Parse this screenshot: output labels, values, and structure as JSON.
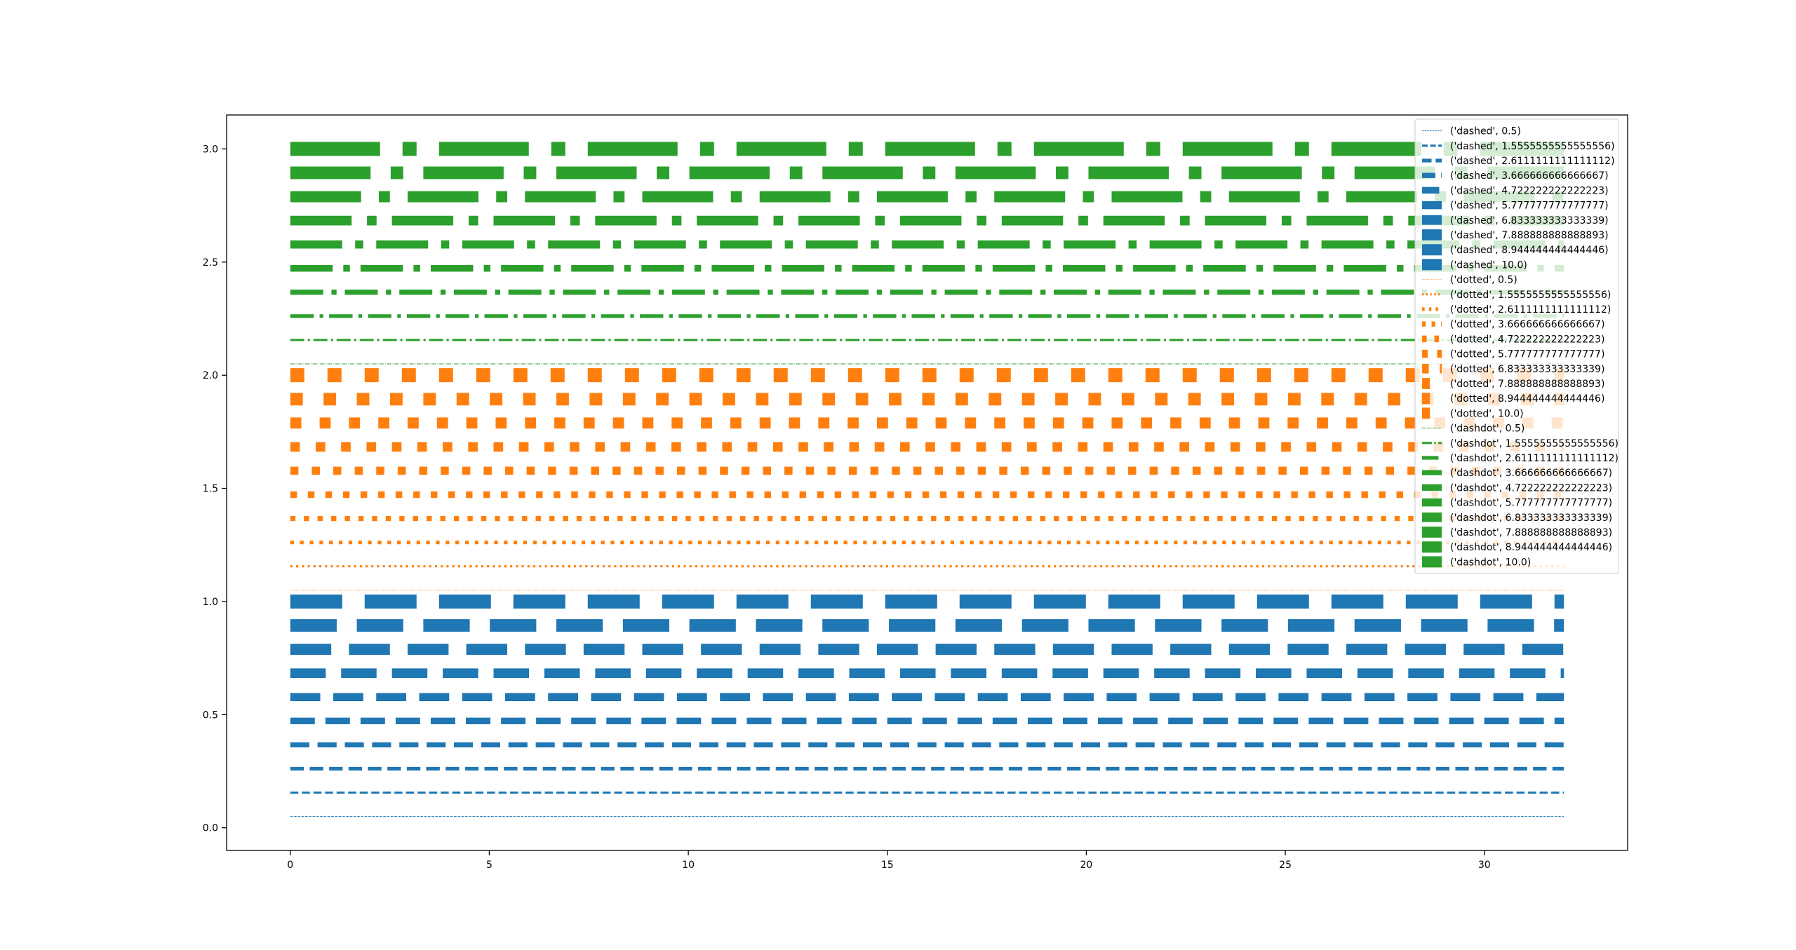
{
  "chart_data": {
    "type": "line",
    "title": "",
    "xlabel": "",
    "ylabel": "",
    "xlim": [
      -1.6,
      33.6
    ],
    "ylim": [
      -0.1,
      3.15
    ],
    "x_ticks": [
      0,
      5,
      10,
      15,
      20,
      25,
      30
    ],
    "y_ticks": [
      0.0,
      0.5,
      1.0,
      1.5,
      2.0,
      2.5,
      3.0
    ],
    "x_tick_labels": [
      "0",
      "5",
      "10",
      "15",
      "20",
      "25",
      "30"
    ],
    "y_tick_labels": [
      "0.0",
      "0.5",
      "1.0",
      "1.5",
      "2.0",
      "2.5",
      "3.0"
    ],
    "x_range": [
      0,
      32
    ],
    "grid": false,
    "legend_position": "top-right",
    "colors": {
      "dashed": "#1f77b4",
      "dotted": "#ff7f0e",
      "dashdot": "#2ca02c"
    },
    "series": [
      {
        "name": "('dashed', 0.5)",
        "style": "dashed",
        "linewidth": 0.5,
        "y": 0.05
      },
      {
        "name": "('dashed', 1.5555555555555556)",
        "style": "dashed",
        "linewidth": 1.5555555555555556,
        "y": 0.1556
      },
      {
        "name": "('dashed', 2.6111111111111112)",
        "style": "dashed",
        "linewidth": 2.611111111111111,
        "y": 0.2611
      },
      {
        "name": "('dashed', 3.666666666666667)",
        "style": "dashed",
        "linewidth": 3.666666666666667,
        "y": 0.3667
      },
      {
        "name": "('dashed', 4.722222222222223)",
        "style": "dashed",
        "linewidth": 4.722222222222223,
        "y": 0.4722
      },
      {
        "name": "('dashed', 5.777777777777777)",
        "style": "dashed",
        "linewidth": 5.777777777777777,
        "y": 0.5778
      },
      {
        "name": "('dashed', 6.833333333333339)",
        "style": "dashed",
        "linewidth": 6.833333333333339,
        "y": 0.6833
      },
      {
        "name": "('dashed', 7.888888888888893)",
        "style": "dashed",
        "linewidth": 7.888888888888893,
        "y": 0.7889
      },
      {
        "name": "('dashed', 8.944444444444446)",
        "style": "dashed",
        "linewidth": 8.944444444444446,
        "y": 0.8944
      },
      {
        "name": "('dashed', 10.0)",
        "style": "dashed",
        "linewidth": 10.0,
        "y": 1.0
      },
      {
        "name": "('dotted', 0.5)",
        "style": "dotted",
        "linewidth": 0.5,
        "y": 1.05
      },
      {
        "name": "('dotted', 1.5555555555555556)",
        "style": "dotted",
        "linewidth": 1.5555555555555556,
        "y": 1.1556
      },
      {
        "name": "('dotted', 2.6111111111111112)",
        "style": "dotted",
        "linewidth": 2.611111111111111,
        "y": 1.2611
      },
      {
        "name": "('dotted', 3.666666666666667)",
        "style": "dotted",
        "linewidth": 3.666666666666667,
        "y": 1.3667
      },
      {
        "name": "('dotted', 4.722222222222223)",
        "style": "dotted",
        "linewidth": 4.722222222222223,
        "y": 1.4722
      },
      {
        "name": "('dotted', 5.777777777777777)",
        "style": "dotted",
        "linewidth": 5.777777777777777,
        "y": 1.5778
      },
      {
        "name": "('dotted', 6.833333333333339)",
        "style": "dotted",
        "linewidth": 6.833333333333339,
        "y": 1.6833
      },
      {
        "name": "('dotted', 7.888888888888893)",
        "style": "dotted",
        "linewidth": 7.888888888888893,
        "y": 1.7889
      },
      {
        "name": "('dotted', 8.944444444444446)",
        "style": "dotted",
        "linewidth": 8.944444444444446,
        "y": 1.8944
      },
      {
        "name": "('dotted', 10.0)",
        "style": "dotted",
        "linewidth": 10.0,
        "y": 2.0
      },
      {
        "name": "('dashdot', 0.5)",
        "style": "dashdot",
        "linewidth": 0.5,
        "y": 2.05
      },
      {
        "name": "('dashdot', 1.5555555555555556)",
        "style": "dashdot",
        "linewidth": 1.5555555555555556,
        "y": 2.1556
      },
      {
        "name": "('dashdot', 2.6111111111111112)",
        "style": "dashdot",
        "linewidth": 2.611111111111111,
        "y": 2.2611
      },
      {
        "name": "('dashdot', 3.666666666666667)",
        "style": "dashdot",
        "linewidth": 3.666666666666667,
        "y": 2.3667
      },
      {
        "name": "('dashdot', 4.722222222222223)",
        "style": "dashdot",
        "linewidth": 4.722222222222223,
        "y": 2.4722
      },
      {
        "name": "('dashdot', 5.777777777777777)",
        "style": "dashdot",
        "linewidth": 5.777777777777777,
        "y": 2.5778
      },
      {
        "name": "('dashdot', 6.833333333333339)",
        "style": "dashdot",
        "linewidth": 6.833333333333339,
        "y": 2.6833
      },
      {
        "name": "('dashdot', 7.888888888888893)",
        "style": "dashdot",
        "linewidth": 7.888888888888893,
        "y": 2.7889
      },
      {
        "name": "('dashdot', 8.944444444444446)",
        "style": "dashdot",
        "linewidth": 8.944444444444446,
        "y": 2.8944
      },
      {
        "name": "('dashdot', 10.0)",
        "style": "dashdot",
        "linewidth": 10.0,
        "y": 3.0
      }
    ]
  }
}
